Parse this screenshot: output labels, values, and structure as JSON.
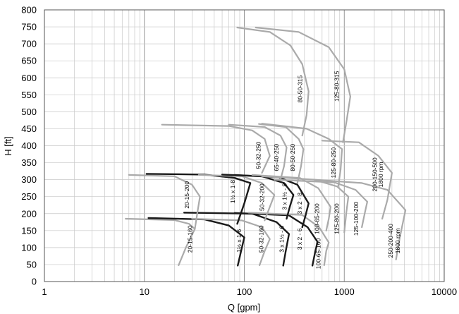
{
  "chart_data": {
    "type": "line",
    "title": "",
    "xlabel": "Q [gpm]",
    "ylabel": "H [ft]",
    "x_scale": "log",
    "xlim": [
      1,
      10000
    ],
    "ylim": [
      0,
      800
    ],
    "x_ticks": [
      "1",
      "10",
      "100",
      "1000",
      "10000"
    ],
    "y_ticks": [
      "0",
      "50",
      "100",
      "150",
      "200",
      "250",
      "300",
      "350",
      "400",
      "450",
      "500",
      "550",
      "600",
      "650",
      "700",
      "750",
      "800"
    ],
    "grid": true,
    "legend": "none",
    "series": [
      {
        "name": "20-15-160",
        "color": "#aaaaaa",
        "points": [
          [
            6.5,
            185
          ],
          [
            20,
            181
          ],
          [
            28,
            170
          ],
          [
            32,
            155
          ],
          [
            26,
            100
          ],
          [
            22,
            48
          ]
        ]
      },
      {
        "name": "1½ x 1-6",
        "color": "#1a1a1a",
        "points": [
          [
            11,
            187
          ],
          [
            40,
            183
          ],
          [
            70,
            165
          ],
          [
            100,
            130
          ],
          [
            92,
            85
          ],
          [
            86,
            47
          ]
        ]
      },
      {
        "name": "50-32-160",
        "color": "#aaaaaa",
        "points": [
          [
            30,
            185
          ],
          [
            95,
            180
          ],
          [
            150,
            160
          ],
          [
            180,
            125
          ],
          [
            160,
            90
          ],
          [
            142,
            48
          ]
        ]
      },
      {
        "name": "3 x 1½ - 6",
        "color": "#1a1a1a",
        "points": [
          [
            25,
            203
          ],
          [
            120,
            200
          ],
          [
            210,
            175
          ],
          [
            280,
            140
          ],
          [
            260,
            90
          ],
          [
            245,
            47
          ]
        ]
      },
      {
        "name": "3 x 2 - 6",
        "color": "#1a1a1a",
        "points": [
          [
            80,
            202
          ],
          [
            280,
            195
          ],
          [
            430,
            160
          ],
          [
            540,
            117
          ],
          [
            510,
            85
          ],
          [
            480,
            47
          ]
        ]
      },
      {
        "name": "100-65-160",
        "color": "#aaaaaa",
        "points": [
          [
            110,
            203
          ],
          [
            380,
            196
          ],
          [
            560,
            160
          ],
          [
            700,
            115
          ],
          [
            660,
            90
          ],
          [
            630,
            48
          ]
        ]
      },
      {
        "name": "20-15-200",
        "color": "#aaaaaa",
        "points": [
          [
            7,
            314
          ],
          [
            20,
            310
          ],
          [
            30,
            285
          ],
          [
            36,
            250
          ],
          [
            34,
            205
          ],
          [
            32,
            155
          ]
        ]
      },
      {
        "name": "1½ x 1-8",
        "color": "#1a1a1a",
        "points": [
          [
            10.5,
            317
          ],
          [
            40,
            315
          ],
          [
            80,
            305
          ],
          [
            115,
            290
          ],
          [
            100,
            230
          ],
          [
            85,
            170
          ]
        ]
      },
      {
        "name": "50-32-200",
        "color": "#aaaaaa",
        "points": [
          [
            35,
            314
          ],
          [
            95,
            310
          ],
          [
            150,
            290
          ],
          [
            200,
            255
          ],
          [
            180,
            220
          ],
          [
            160,
            180
          ]
        ]
      },
      {
        "name": "3 x 1½ - 8",
        "color": "#1a1a1a",
        "points": [
          [
            60,
            315
          ],
          [
            150,
            310
          ],
          [
            250,
            290
          ],
          [
            310,
            255
          ],
          [
            285,
            220
          ],
          [
            265,
            185
          ]
        ]
      },
      {
        "name": "3 x 2 - 8",
        "color": "#1a1a1a",
        "points": [
          [
            80,
            314
          ],
          [
            220,
            307
          ],
          [
            340,
            285
          ],
          [
            440,
            230
          ],
          [
            410,
            195
          ],
          [
            380,
            160
          ]
        ]
      },
      {
        "name": "100-65-200",
        "color": "#aaaaaa",
        "points": [
          [
            120,
            314
          ],
          [
            360,
            305
          ],
          [
            550,
            275
          ],
          [
            730,
            220
          ],
          [
            700,
            185
          ],
          [
            660,
            150
          ]
        ]
      },
      {
        "name": "125-80-200",
        "color": "#aaaaaa",
        "points": [
          [
            150,
            310
          ],
          [
            500,
            300
          ],
          [
            850,
            280
          ],
          [
            1100,
            250
          ],
          [
            1050,
            205
          ],
          [
            1000,
            145
          ]
        ]
      },
      {
        "name": "125-100-200",
        "color": "#aaaaaa",
        "points": [
          [
            200,
            300
          ],
          [
            800,
            292
          ],
          [
            1300,
            270
          ],
          [
            1700,
            235
          ],
          [
            1600,
            200
          ],
          [
            1500,
            160
          ]
        ]
      },
      {
        "name": "250-200-400 1800 rpm",
        "color": "#aaaaaa",
        "points": [
          [
            500,
            300
          ],
          [
            1500,
            290
          ],
          [
            2700,
            270
          ],
          [
            3700,
            225
          ],
          [
            4100,
            210
          ],
          [
            3600,
            130
          ],
          [
            3300,
            65
          ]
        ]
      },
      {
        "name": "50-32-250",
        "color": "#aaaaaa",
        "points": [
          [
            15,
            462
          ],
          [
            70,
            458
          ],
          [
            120,
            445
          ],
          [
            160,
            420
          ],
          [
            180,
            370
          ],
          [
            150,
            320
          ]
        ]
      },
      {
        "name": "65-40-250",
        "color": "#aaaaaa",
        "points": [
          [
            70,
            462
          ],
          [
            160,
            455
          ],
          [
            230,
            430
          ],
          [
            265,
            395
          ],
          [
            250,
            340
          ],
          [
            230,
            300
          ]
        ]
      },
      {
        "name": "80-50-250",
        "color": "#aaaaaa",
        "points": [
          [
            140,
            464
          ],
          [
            260,
            455
          ],
          [
            350,
            420
          ],
          [
            390,
            390
          ],
          [
            370,
            340
          ],
          [
            340,
            290
          ]
        ]
      },
      {
        "name": "125-80-250",
        "color": "#aaaaaa",
        "points": [
          [
            150,
            465
          ],
          [
            420,
            450
          ],
          [
            700,
            420
          ],
          [
            950,
            390
          ],
          [
            920,
            330
          ],
          [
            870,
            280
          ]
        ]
      },
      {
        "name": "200-150-500 1800 rpm",
        "color": "#aaaaaa",
        "points": [
          [
            600,
            415
          ],
          [
            1400,
            410
          ],
          [
            2200,
            370
          ],
          [
            3000,
            320
          ],
          [
            2700,
            240
          ],
          [
            2400,
            185
          ]
        ]
      },
      {
        "name": "80-50-315",
        "color": "#aaaaaa",
        "points": [
          [
            85,
            748
          ],
          [
            180,
            735
          ],
          [
            290,
            695
          ],
          [
            380,
            640
          ],
          [
            440,
            560
          ],
          [
            420,
            490
          ],
          [
            380,
            430
          ]
        ]
      },
      {
        "name": "125-80-315",
        "color": "#aaaaaa",
        "points": [
          [
            130,
            748
          ],
          [
            350,
            735
          ],
          [
            700,
            690
          ],
          [
            1000,
            625
          ],
          [
            1150,
            545
          ],
          [
            1050,
            470
          ],
          [
            970,
            410
          ]
        ]
      }
    ],
    "curve_labels": [
      {
        "text": "20-15-160",
        "x": 30,
        "y": 125
      },
      {
        "text": "1½ x 1-6",
        "x": 93,
        "y": 120
      },
      {
        "text": "50-32-160",
        "x": 155,
        "y": 125
      },
      {
        "text": "3 x 1½ - 6",
        "x": 248,
        "y": 125
      },
      {
        "text": "3 x 2 - 6",
        "x": 375,
        "y": 125
      },
      {
        "text": "100-65-160",
        "x": 580,
        "y": 82
      },
      {
        "text": "20-15-200",
        "x": 28,
        "y": 255
      },
      {
        "text": "1½ x 1-8",
        "x": 80,
        "y": 265
      },
      {
        "text": "50-32-200",
        "x": 158,
        "y": 248
      },
      {
        "text": "3 x 1½ - 8",
        "x": 265,
        "y": 250
      },
      {
        "text": "3 x 2 - 8",
        "x": 375,
        "y": 230
      },
      {
        "text": "100-65-200",
        "x": 560,
        "y": 185
      },
      {
        "text": "125-80-200",
        "x": 880,
        "y": 185
      },
      {
        "text": "125-100-200",
        "x": 1380,
        "y": 185
      },
      {
        "text": "250-200-400",
        "x": 3050,
        "y": 120
      },
      {
        "text": "1800 rpm",
        "x": 3600,
        "y": 120
      },
      {
        "text": "50-32-250",
        "x": 145,
        "y": 372
      },
      {
        "text": "65-40-250",
        "x": 220,
        "y": 365
      },
      {
        "text": "80-50-250",
        "x": 320,
        "y": 365
      },
      {
        "text": "125-80-250",
        "x": 820,
        "y": 350
      },
      {
        "text": "200-150-500",
        "x": 2120,
        "y": 315
      },
      {
        "text": "1800 rpm",
        "x": 2430,
        "y": 315
      },
      {
        "text": "80-50-315",
        "x": 380,
        "y": 567
      },
      {
        "text": "125-80-315",
        "x": 880,
        "y": 575
      }
    ]
  }
}
